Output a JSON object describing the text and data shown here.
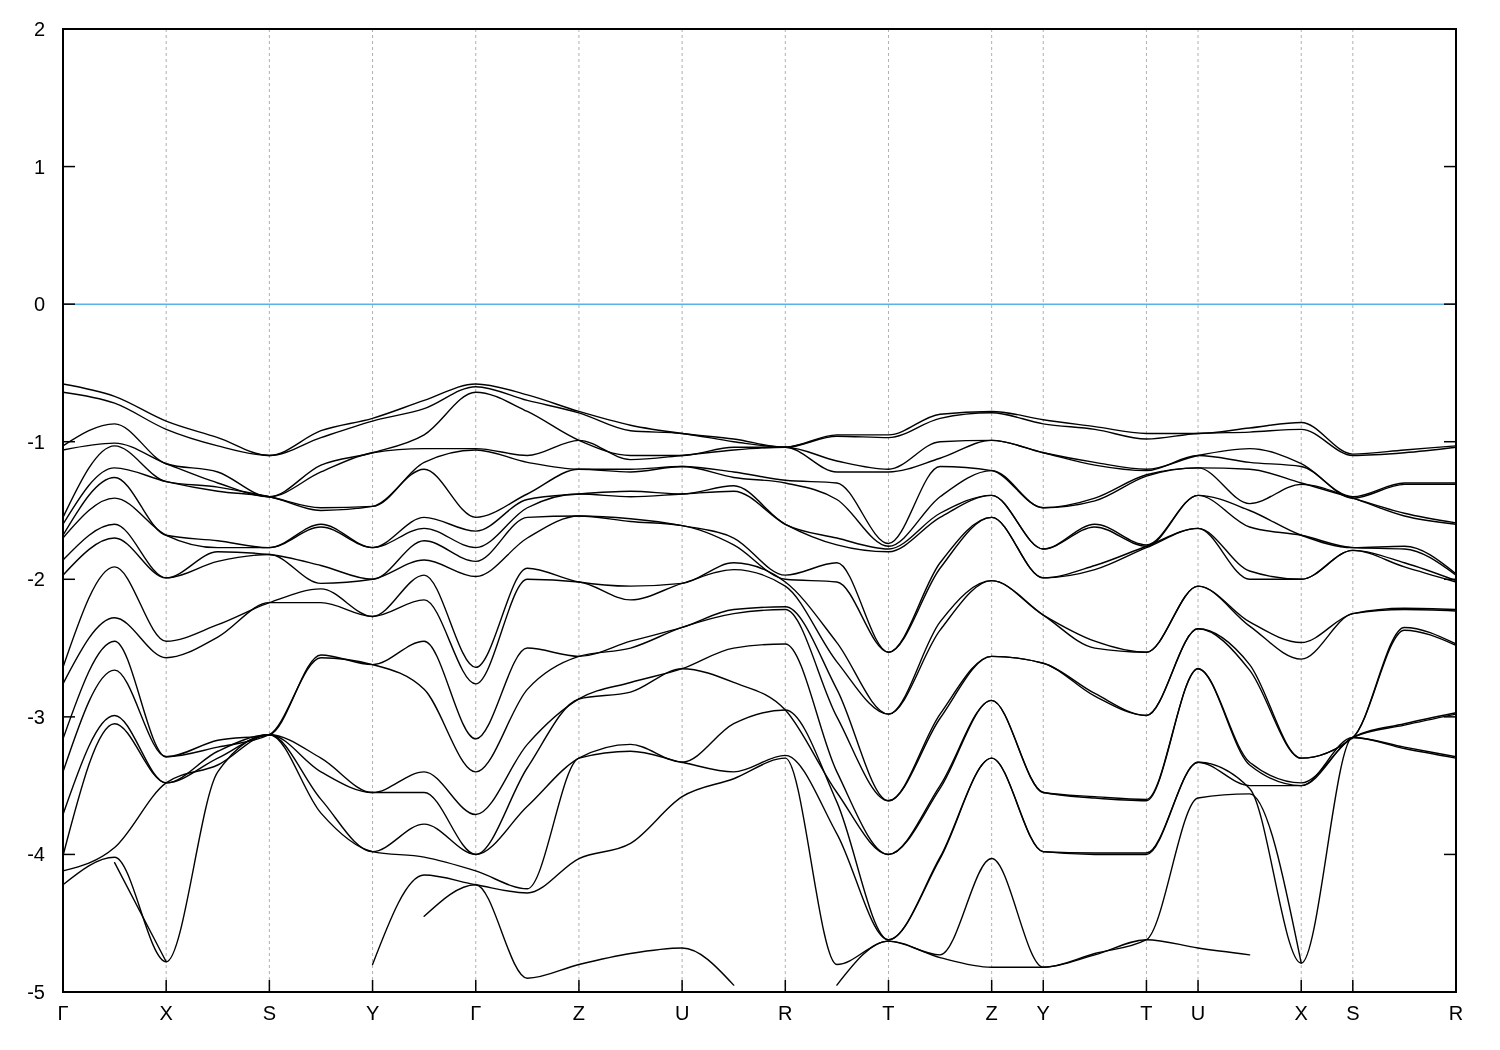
{
  "chart_data": {
    "type": "line",
    "categories": [
      "Γ",
      null,
      "X",
      null,
      "S",
      null,
      "Y",
      null,
      "Γ",
      null,
      "Z",
      null,
      "U",
      null,
      "R",
      null,
      "T",
      null,
      "Z",
      "Y",
      null,
      "T",
      "U",
      null,
      "X",
      "S",
      null,
      "R"
    ],
    "ylim": [
      -5,
      2
    ],
    "yticks": [
      -5,
      -4,
      -3,
      -2,
      -1,
      0,
      1,
      2
    ],
    "grid": "x",
    "ref_lines": [
      {
        "axis": "y",
        "value": 0,
        "color": "#56b4e9"
      }
    ],
    "series": [
      {
        "color": "#000000",
        "values": [
          -0.58,
          -0.67,
          -0.85,
          -0.97,
          -1.1,
          -0.92,
          -0.83,
          -0.7,
          -0.58,
          -0.66,
          -0.78,
          -0.88,
          -0.94,
          -0.98,
          -1.04,
          -0.95,
          -0.95,
          -0.8,
          -0.78,
          -0.84,
          -0.89,
          -0.94,
          -0.94,
          -0.9,
          -0.86,
          -1.09,
          -1.06,
          -1.03
        ]
      },
      {
        "color": "#000000",
        "values": [
          -0.64,
          -0.72,
          -0.91,
          -1.03,
          -1.1,
          -0.97,
          -0.85,
          -0.76,
          -0.6,
          -0.7,
          -0.79,
          -0.92,
          -0.94,
          -1.0,
          -1.04,
          -0.96,
          -0.97,
          -0.83,
          -0.79,
          -0.87,
          -0.91,
          -0.98,
          -0.94,
          -0.93,
          -0.91,
          -1.1,
          -1.08,
          -1.04
        ]
      },
      {
        "color": "#000000",
        "values": [
          -1.03,
          -0.87,
          -1.16,
          -1.22,
          -1.4,
          -1.17,
          -1.08,
          -0.95,
          -0.64,
          -0.78,
          -0.99,
          -1.1,
          -1.1,
          -1.04,
          -1.04,
          -1.14,
          -1.2,
          -1.0,
          -0.99,
          -1.08,
          -1.15,
          -1.2,
          -1.1,
          -1.05,
          -1.16,
          -1.4,
          -1.3,
          -1.3
        ]
      },
      {
        "color": "#000000",
        "values": [
          -1.06,
          -1.01,
          -1.16,
          -1.3,
          -1.4,
          -1.22,
          -1.08,
          -1.05,
          -1.05,
          -1.1,
          -0.99,
          -1.13,
          -1.1,
          -1.06,
          -1.04,
          -1.22,
          -1.22,
          -1.12,
          -0.99,
          -1.08,
          -1.17,
          -1.21,
          -1.1,
          -1.15,
          -1.18,
          -1.41,
          -1.31,
          -1.31
        ]
      },
      {
        "color": "#000000",
        "values": [
          -1.55,
          -1.03,
          -1.29,
          -1.33,
          -1.4,
          -1.48,
          -1.47,
          -1.15,
          -1.06,
          -1.15,
          -1.2,
          -1.2,
          -1.18,
          -1.22,
          -1.28,
          -1.3,
          -1.74,
          -1.18,
          -1.21,
          -1.48,
          -1.41,
          -1.24,
          -1.19,
          -1.2,
          -1.3,
          -1.41,
          -1.52,
          -1.59
        ]
      },
      {
        "color": "#000000",
        "values": [
          -1.6,
          -1.19,
          -1.29,
          -1.36,
          -1.4,
          -1.5,
          -1.47,
          -1.2,
          -1.55,
          -1.38,
          -1.2,
          -1.22,
          -1.18,
          -1.26,
          -1.3,
          -1.42,
          -1.76,
          -1.4,
          -1.21,
          -1.48,
          -1.43,
          -1.25,
          -1.19,
          -1.45,
          -1.31,
          -1.41,
          -1.54,
          -1.6
        ]
      },
      {
        "color": "#000000",
        "values": [
          -1.68,
          -1.26,
          -1.68,
          -1.72,
          -1.77,
          -1.6,
          -1.77,
          -1.55,
          -1.65,
          -1.42,
          -1.38,
          -1.36,
          -1.38,
          -1.32,
          -1.6,
          -1.7,
          -1.78,
          -1.52,
          -1.39,
          -1.78,
          -1.6,
          -1.75,
          -1.39,
          -1.5,
          -1.68,
          -1.77,
          -1.76,
          -1.96
        ]
      },
      {
        "color": "#000000",
        "values": [
          -1.7,
          -1.41,
          -1.68,
          -1.77,
          -1.77,
          -1.62,
          -1.77,
          -1.63,
          -1.77,
          -1.48,
          -1.38,
          -1.4,
          -1.38,
          -1.36,
          -1.6,
          -1.75,
          -1.8,
          -1.55,
          -1.39,
          -1.78,
          -1.62,
          -1.76,
          -1.39,
          -1.62,
          -1.68,
          -1.77,
          -1.78,
          -1.97
        ]
      },
      {
        "color": "#000000",
        "values": [
          -1.86,
          -1.6,
          -1.99,
          -1.8,
          -1.82,
          -1.9,
          -2.0,
          -1.72,
          -1.87,
          -1.55,
          -1.54,
          -1.56,
          -1.61,
          -1.7,
          -1.97,
          -1.88,
          -2.53,
          -1.88,
          -1.55,
          -1.99,
          -1.9,
          -1.76,
          -1.63,
          -1.94,
          -2.0,
          -1.79,
          -1.88,
          -2.01
        ]
      },
      {
        "color": "#000000",
        "values": [
          -1.97,
          -1.7,
          -1.99,
          -1.87,
          -1.82,
          -2.03,
          -2.0,
          -1.86,
          -1.98,
          -1.7,
          -1.54,
          -1.58,
          -1.61,
          -1.75,
          -2.0,
          -2.02,
          -2.53,
          -1.92,
          -1.55,
          -1.99,
          -1.93,
          -1.77,
          -1.63,
          -2.0,
          -2.0,
          -1.79,
          -1.91,
          -2.02
        ]
      },
      {
        "color": "#000000",
        "values": [
          -2.64,
          -1.91,
          -2.45,
          -2.33,
          -2.17,
          -2.07,
          -2.27,
          -1.97,
          -2.64,
          -1.92,
          -2.02,
          -2.05,
          -2.03,
          -1.88,
          -2.02,
          -2.46,
          -2.98,
          -2.31,
          -2.01,
          -2.26,
          -2.45,
          -2.53,
          -2.05,
          -2.31,
          -2.46,
          -2.25,
          -2.21,
          -2.22
        ]
      },
      {
        "color": "#000000",
        "values": [
          -2.76,
          -2.28,
          -2.57,
          -2.42,
          -2.17,
          -2.17,
          -2.27,
          -2.15,
          -2.76,
          -2.0,
          -2.02,
          -2.15,
          -2.03,
          -1.93,
          -2.05,
          -2.6,
          -2.98,
          -2.37,
          -2.01,
          -2.26,
          -2.5,
          -2.53,
          -2.05,
          -2.34,
          -2.58,
          -2.25,
          -2.22,
          -2.23
        ]
      },
      {
        "color": "#000000",
        "values": [
          -3.16,
          -2.45,
          -3.29,
          -3.17,
          -3.13,
          -2.55,
          -2.62,
          -2.45,
          -3.16,
          -2.5,
          -2.56,
          -2.45,
          -2.35,
          -2.22,
          -2.2,
          -2.8,
          -3.61,
          -2.98,
          -2.56,
          -2.61,
          -2.83,
          -2.99,
          -2.36,
          -2.62,
          -3.3,
          -3.15,
          -2.35,
          -2.47
        ]
      },
      {
        "color": "#000000",
        "values": [
          -3.4,
          -2.66,
          -3.29,
          -3.22,
          -3.13,
          -2.57,
          -2.62,
          -2.8,
          -3.4,
          -2.8,
          -2.56,
          -2.5,
          -2.35,
          -2.25,
          -2.22,
          -3.0,
          -3.61,
          -3.01,
          -2.56,
          -2.61,
          -2.85,
          -2.99,
          -2.36,
          -2.66,
          -3.3,
          -3.15,
          -2.37,
          -2.48
        ]
      },
      {
        "color": "#000000",
        "values": [
          -3.71,
          -2.99,
          -3.48,
          -3.25,
          -3.13,
          -3.3,
          -3.55,
          -3.4,
          -3.71,
          -3.2,
          -2.87,
          -2.75,
          -2.65,
          -2.5,
          -2.47,
          -3.4,
          -4.0,
          -3.5,
          -2.88,
          -3.55,
          -3.58,
          -3.6,
          -2.65,
          -3.33,
          -3.48,
          -3.15,
          -3.05,
          -2.97
        ]
      },
      {
        "color": "#000000",
        "values": [
          -4.01,
          -3.05,
          -3.48,
          -3.3,
          -3.13,
          -3.4,
          -3.55,
          -3.55,
          -4.0,
          -3.37,
          -2.87,
          -2.82,
          -2.65,
          -2.75,
          -2.95,
          -3.55,
          -4.0,
          -3.52,
          -2.88,
          -3.55,
          -3.59,
          -3.61,
          -2.65,
          -3.35,
          -3.5,
          -3.15,
          -3.06,
          -2.98
        ]
      },
      {
        "color": "#000000",
        "values": [
          -4.12,
          -3.95,
          -3.48,
          -3.35,
          -3.13,
          -3.6,
          -3.98,
          -3.78,
          -4.0,
          -3.65,
          -3.3,
          -3.2,
          -3.33,
          -3.05,
          -2.95,
          -3.62,
          -4.62,
          -4.02,
          -3.3,
          -3.98,
          -3.99,
          -3.99,
          -3.33,
          -3.5,
          -3.5,
          -3.15,
          -3.22,
          -3.29
        ]
      },
      {
        "color": "#000000",
        "values": [
          -4.22,
          -4.02,
          -4.78,
          -3.4,
          -3.13,
          -3.7,
          -3.98,
          -4.02,
          -4.12,
          -4.25,
          -3.3,
          -3.25,
          -3.33,
          -3.4,
          -3.28,
          -3.85,
          -4.62,
          -4.03,
          -3.3,
          -3.98,
          -4.0,
          -4.0,
          -3.33,
          -3.52,
          -4.79,
          -3.15,
          -3.23,
          -3.3
        ]
      },
      {
        "color": "#000000",
        "values": [
          null,
          -4.06,
          -4.78,
          null,
          null,
          null,
          -4.8,
          -4.15,
          -4.22,
          -4.28,
          -4.03,
          -3.92,
          -3.58,
          -3.45,
          -3.3,
          -4.8,
          -4.63,
          -4.73,
          -4.03,
          -4.82,
          -4.72,
          -4.62,
          -3.59,
          -3.56,
          -4.79,
          null,
          null,
          null
        ]
      },
      {
        "color": "#000000",
        "values": [
          null,
          null,
          null,
          null,
          null,
          null,
          null,
          -4.45,
          -4.22,
          -4.9,
          -4.8,
          -4.72,
          -4.68,
          -4.95,
          null,
          -4.95,
          -4.63,
          -4.75,
          -4.82,
          -4.82,
          -4.73,
          -4.62,
          -4.68,
          -4.73,
          null,
          null,
          null,
          null
        ]
      }
    ]
  }
}
